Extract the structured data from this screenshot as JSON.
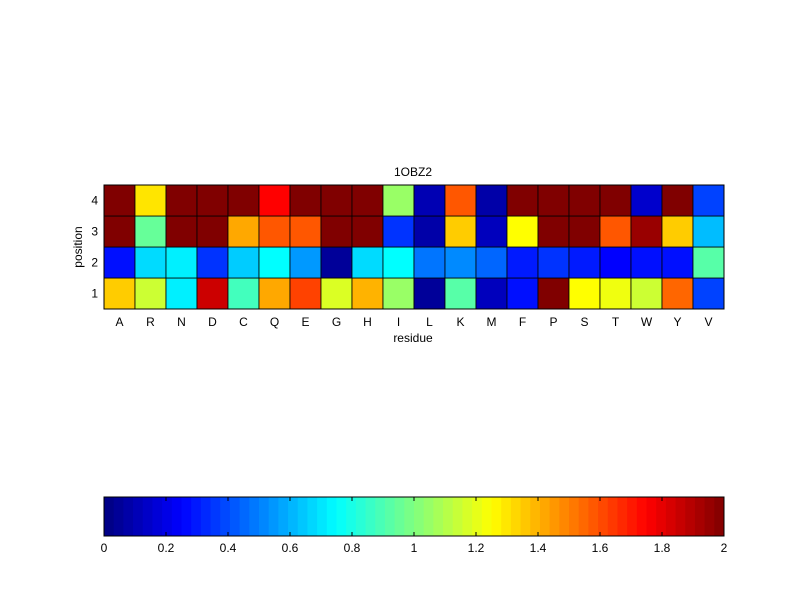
{
  "chart_data": {
    "type": "heatmap",
    "title": "1OBZ2",
    "xlabel": "residue",
    "ylabel": "position",
    "x_categories": [
      "A",
      "R",
      "N",
      "D",
      "C",
      "Q",
      "E",
      "G",
      "H",
      "I",
      "L",
      "K",
      "M",
      "F",
      "P",
      "S",
      "T",
      "W",
      "Y",
      "V"
    ],
    "y_categories": [
      "1",
      "2",
      "3",
      "4"
    ],
    "values": [
      [
        1.35,
        1.15,
        0.72,
        1.85,
        0.88,
        1.42,
        1.62,
        1.18,
        1.4,
        1.05,
        0.05,
        0.92,
        0.12,
        0.28,
        2.0,
        1.25,
        1.22,
        1.15,
        1.55,
        0.38
      ],
      [
        0.28,
        0.68,
        0.72,
        0.35,
        0.65,
        0.75,
        0.55,
        0.05,
        0.68,
        0.75,
        0.48,
        0.52,
        0.45,
        0.3,
        0.35,
        0.3,
        0.25,
        0.28,
        0.28,
        0.92
      ],
      [
        2.0,
        0.95,
        2.0,
        2.0,
        1.42,
        1.58,
        1.58,
        2.0,
        2.0,
        0.35,
        0.08,
        1.35,
        0.12,
        1.25,
        2.0,
        2.0,
        1.58,
        1.95,
        1.35,
        0.62
      ],
      [
        2.0,
        1.3,
        2.0,
        2.0,
        2.0,
        1.75,
        2.0,
        2.0,
        2.0,
        1.05,
        0.1,
        1.58,
        0.08,
        2.0,
        2.0,
        2.0,
        2.0,
        0.15,
        2.0,
        0.38
      ]
    ],
    "colormap": "jet",
    "clim": [
      0,
      2
    ],
    "colorbar": {
      "orientation": "horizontal",
      "ticks": [
        0,
        0.2,
        0.4,
        0.6,
        0.8,
        1,
        1.2,
        1.4,
        1.6,
        1.8,
        2
      ],
      "tick_labels": [
        "0",
        "0.2",
        "0.4",
        "0.6",
        "0.8",
        "1",
        "1.2",
        "1.4",
        "1.6",
        "1.8",
        "2"
      ]
    }
  }
}
